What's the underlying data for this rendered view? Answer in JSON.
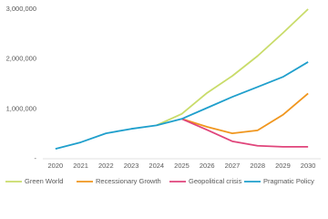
{
  "chart_data": {
    "type": "line",
    "categories": [
      "2020",
      "2021",
      "2022",
      "2023",
      "2024",
      "2025",
      "2026",
      "2027",
      "2028",
      "2029",
      "2030"
    ],
    "series": [
      {
        "name": "Green World",
        "color": "#c9dc6a",
        "values": [
          null,
          null,
          null,
          null,
          670000,
          900000,
          1320000,
          1660000,
          2060000,
          2520000,
          3000000
        ]
      },
      {
        "name": "Recessionary Growth",
        "color": "#f0961e",
        "values": [
          null,
          null,
          null,
          null,
          null,
          800000,
          640000,
          510000,
          570000,
          880000,
          1310000
        ]
      },
      {
        "name": "Geopolitical crisis",
        "color": "#e0457b",
        "values": [
          null,
          null,
          null,
          null,
          null,
          800000,
          580000,
          350000,
          260000,
          240000,
          240000
        ]
      },
      {
        "name": "Pragmatic Policy",
        "color": "#1f9fcc",
        "values": [
          200000,
          330000,
          510000,
          600000,
          670000,
          800000,
          1020000,
          1240000,
          1440000,
          1640000,
          1940000
        ]
      }
    ],
    "ylim": [
      0,
      3000000
    ],
    "yticks": [
      {
        "value": 0,
        "label": "-"
      },
      {
        "value": 1000000,
        "label": "1,000,000"
      },
      {
        "value": 2000000,
        "label": "2,000,000"
      },
      {
        "value": 3000000,
        "label": "3,000,000"
      }
    ],
    "grid": false,
    "legend": "bottom"
  }
}
